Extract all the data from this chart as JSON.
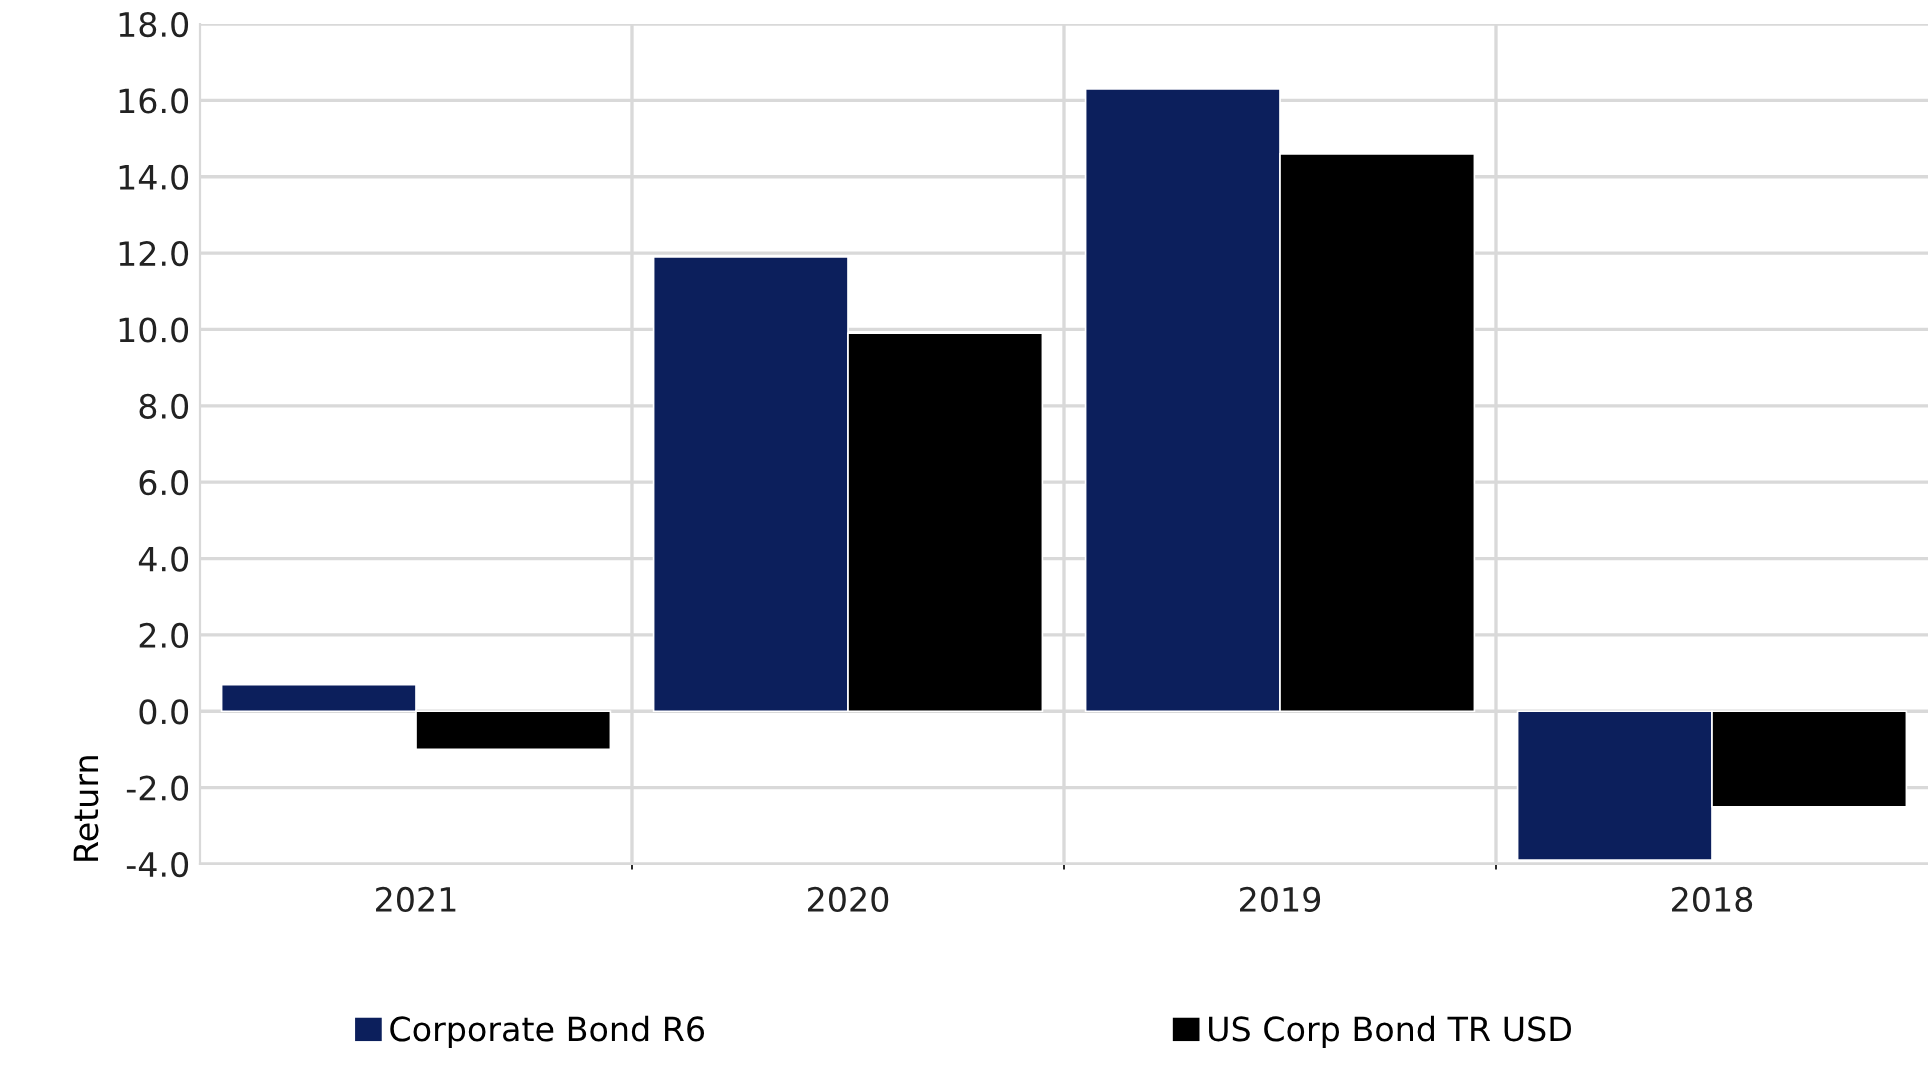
{
  "chart_data": {
    "type": "bar",
    "ylabel": "Return",
    "categories": [
      "2021",
      "2020",
      "2019",
      "2018"
    ],
    "series": [
      {
        "name": "Corporate Bond R6",
        "color": "#0c1f5c",
        "values": [
          0.7,
          11.9,
          16.3,
          -3.9
        ]
      },
      {
        "name": "US Corp Bond TR USD",
        "color": "#000000",
        "values": [
          -1.0,
          9.9,
          14.6,
          -2.5
        ]
      }
    ],
    "ylim": [
      -4,
      18
    ],
    "yticks": [
      {
        "value": -4,
        "label": "-4.0"
      },
      {
        "value": -2,
        "label": "-2.0"
      },
      {
        "value": 0,
        "label": "0.0"
      },
      {
        "value": 2,
        "label": "2.0"
      },
      {
        "value": 4,
        "label": "4.0"
      },
      {
        "value": 6,
        "label": "6.0"
      },
      {
        "value": 8,
        "label": "8.0"
      },
      {
        "value": 10,
        "label": "10.0"
      },
      {
        "value": 12,
        "label": "12.0"
      },
      {
        "value": 14,
        "label": "14.0"
      },
      {
        "value": 16,
        "label": "16.0"
      },
      {
        "value": 18,
        "label": "18.0"
      }
    ],
    "grid": true,
    "legend": "bottom"
  }
}
